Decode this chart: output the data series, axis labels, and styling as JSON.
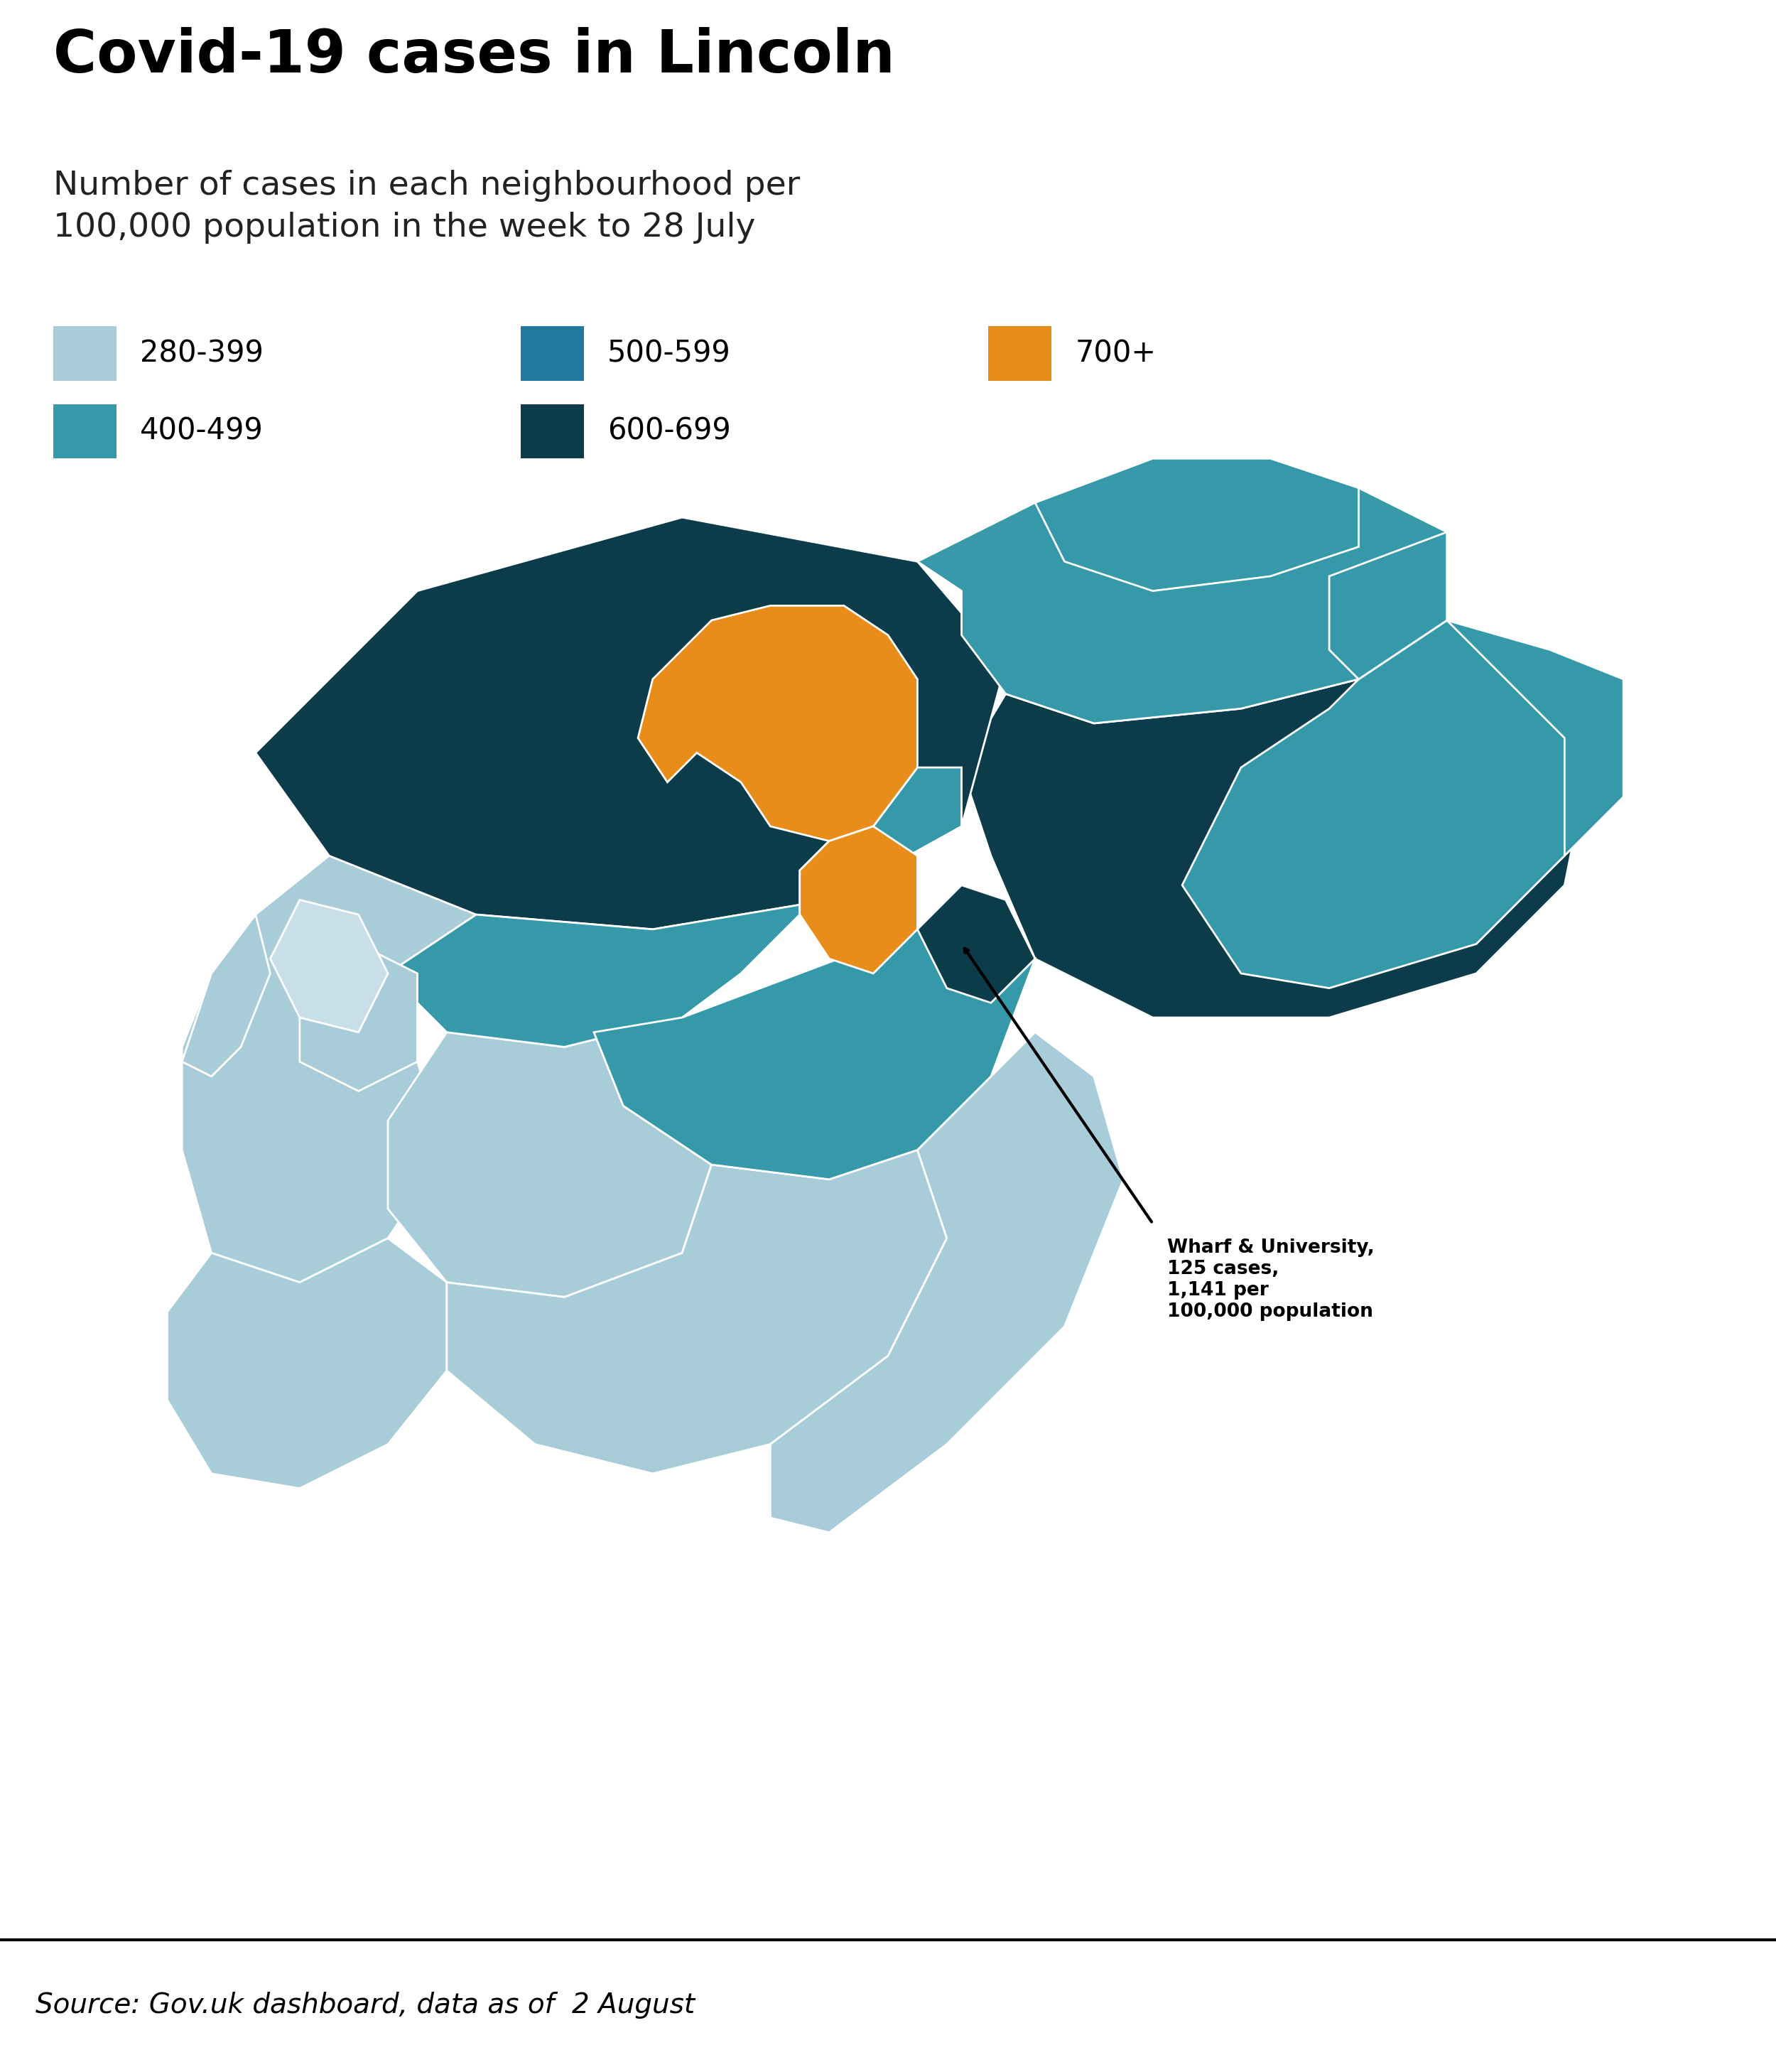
{
  "title": "Covid-19 cases in Lincoln",
  "subtitle": "Number of cases in each neighbourhood per\n100,000 population in the week to 28 July",
  "source": "Source: Gov.uk dashboard, data as of  2 August",
  "annotation_text": "Wharf & University,\n125 cases,\n1,141 per\n100,000 population",
  "colors": {
    "c280": "#a8ccd8",
    "c400": "#3599aa",
    "c500": "#2279a0",
    "c600": "#0c3b4a",
    "c700": "#e88d1a",
    "white": "#ffffff",
    "black": "#111111"
  },
  "legend": [
    {
      "label": "280-399",
      "color": "#a8ccd8",
      "row": 0,
      "col": 0
    },
    {
      "label": "400-499",
      "color": "#3599aa",
      "row": 1,
      "col": 0
    },
    {
      "label": "500-599",
      "color": "#2279a0",
      "row": 0,
      "col": 1
    },
    {
      "label": "600-699",
      "color": "#0c3b4a",
      "row": 1,
      "col": 1
    },
    {
      "label": "700+",
      "color": "#e88d1a",
      "row": 0,
      "col": 2
    }
  ]
}
